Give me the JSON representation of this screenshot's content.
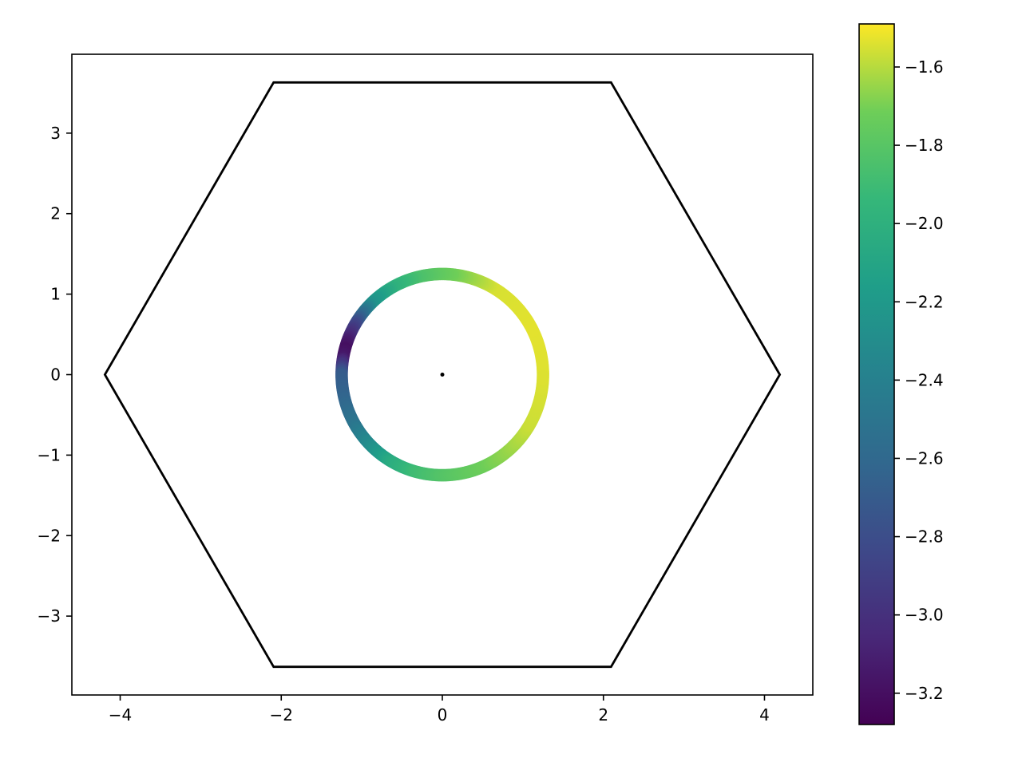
{
  "chart_data": {
    "type": "scatter",
    "title": "",
    "xlabel": "",
    "ylabel": "",
    "xlim": [
      -4.6,
      4.6
    ],
    "ylim": [
      -3.98,
      3.98
    ],
    "x_ticks": [
      -4,
      -2,
      0,
      2,
      4
    ],
    "x_tick_labels": [
      "−4",
      "−2",
      "0",
      "2",
      "4"
    ],
    "y_ticks": [
      -3,
      -2,
      -1,
      0,
      1,
      2,
      3
    ],
    "y_tick_labels": [
      "−3",
      "−2",
      "−1",
      "0",
      "1",
      "2",
      "3"
    ],
    "grid": false,
    "colormap": "viridis",
    "hexagon": {
      "color": "#000000",
      "vertices": [
        [
          4.19,
          0
        ],
        [
          2.095,
          3.63
        ],
        [
          -2.095,
          3.63
        ],
        [
          -4.19,
          0
        ],
        [
          -2.095,
          -3.63
        ],
        [
          2.095,
          -3.63
        ]
      ]
    },
    "center_point": {
      "x": 0,
      "y": 0,
      "color": "#000000"
    },
    "ring": {
      "center": [
        0,
        0
      ],
      "radius": 1.25,
      "angles_deg": [
        0,
        30,
        60,
        90,
        105,
        120,
        135,
        150,
        160,
        165,
        170,
        180,
        195,
        210,
        225,
        240,
        255,
        270,
        300,
        330,
        360
      ],
      "values": [
        -1.54,
        -1.53,
        -1.55,
        -1.75,
        -1.85,
        -2.0,
        -2.25,
        -2.85,
        -3.12,
        -3.2,
        -3.15,
        -2.7,
        -2.62,
        -2.5,
        -2.3,
        -2.05,
        -1.9,
        -1.82,
        -1.7,
        -1.57,
        -1.54
      ]
    },
    "colorbar": {
      "range": [
        -3.28,
        -1.49
      ],
      "ticks": [
        -3.2,
        -3.0,
        -2.8,
        -2.6,
        -2.4,
        -2.2,
        -2.0,
        -1.8,
        -1.6
      ],
      "tick_labels": [
        "−3.2",
        "−3.0",
        "−2.8",
        "−2.6",
        "−2.4",
        "−2.2",
        "−2.0",
        "−1.8",
        "−1.6"
      ]
    }
  }
}
